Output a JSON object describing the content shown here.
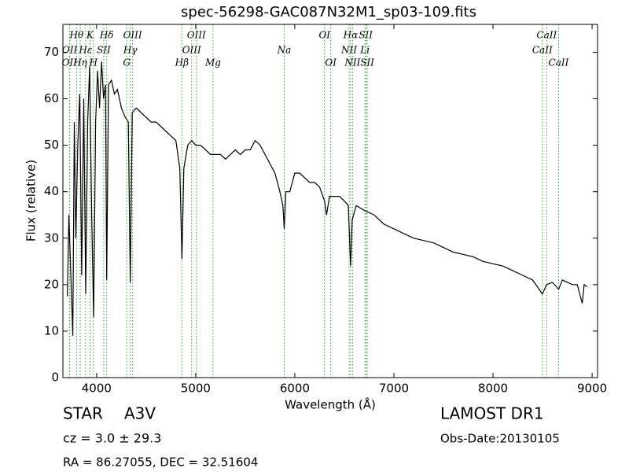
{
  "chart_data": {
    "type": "line",
    "title": "spec-56298-GAC087N32M1_sp03-109.fits",
    "xlabel": "Wavelength (Å)",
    "ylabel": "Flux (relative)",
    "xlim": [
      3660,
      9055
    ],
    "ylim": [
      0,
      76
    ],
    "xticks": [
      4000,
      5000,
      6000,
      7000,
      8000,
      9000
    ],
    "yticks": [
      0,
      10,
      20,
      30,
      40,
      50,
      60,
      70
    ],
    "x": [
      3705,
      3720,
      3740,
      3760,
      3775,
      3790,
      3810,
      3830,
      3850,
      3870,
      3890,
      3910,
      3930,
      3950,
      3970,
      3990,
      4010,
      4030,
      4050,
      4070,
      4090,
      4102,
      4120,
      4150,
      4180,
      4210,
      4250,
      4290,
      4320,
      4340,
      4360,
      4400,
      4450,
      4500,
      4550,
      4600,
      4650,
      4700,
      4750,
      4800,
      4840,
      4861,
      4880,
      4920,
      4960,
      5000,
      5050,
      5100,
      5150,
      5200,
      5250,
      5300,
      5350,
      5400,
      5450,
      5500,
      5550,
      5600,
      5650,
      5700,
      5750,
      5800,
      5850,
      5880,
      5893,
      5910,
      5950,
      6000,
      6050,
      6100,
      6150,
      6200,
      6250,
      6300,
      6320,
      6350,
      6400,
      6450,
      6500,
      6540,
      6563,
      6580,
      6620,
      6700,
      6800,
      6900,
      7000,
      7100,
      7200,
      7300,
      7400,
      7500,
      7600,
      7700,
      7800,
      7900,
      8000,
      8100,
      8200,
      8300,
      8400,
      8498,
      8542,
      8600,
      8662,
      8700,
      8800,
      8850,
      8900,
      8920,
      8950
    ],
    "series": [
      {
        "color": "#000000",
        "values": [
          17.5,
          35,
          22,
          9,
          55,
          30,
          50,
          61,
          22,
          60,
          18,
          55,
          67,
          35,
          13,
          55,
          66,
          58,
          68,
          60,
          63,
          21,
          63,
          64,
          61,
          62,
          58,
          56,
          55,
          20.5,
          57,
          58,
          57,
          56,
          55,
          55,
          54,
          53,
          52,
          51,
          45,
          25.5,
          45,
          50,
          51,
          50,
          50,
          49,
          48,
          48,
          48,
          47,
          48,
          49,
          48,
          49,
          49,
          51,
          50,
          48,
          46,
          44,
          40,
          37,
          32,
          40,
          40,
          44,
          44,
          43,
          42,
          42,
          41,
          38,
          35,
          39,
          39,
          39,
          38,
          37,
          24,
          34,
          37,
          36,
          35,
          33,
          32,
          31,
          30,
          29.5,
          29,
          28,
          27,
          26.5,
          26,
          25,
          24.5,
          24,
          23,
          22,
          21,
          18,
          20,
          20.5,
          19,
          21,
          20,
          20,
          16,
          20,
          19.5
        ]
      }
    ],
    "line_color": "#2ca02c",
    "annotations": [
      [
        {
          "label": "Hθ",
          "x": 3798
        },
        {
          "label": "K",
          "x": 3934
        },
        {
          "label": "Hδ",
          "x": 4102
        },
        {
          "label": "OIII",
          "x": 4363
        },
        {
          "label": "OIII",
          "x": 5007
        },
        {
          "label": "OI",
          "x": 6300
        },
        {
          "label": "Hα",
          "x": 6563
        },
        {
          "label": "SII",
          "x": 6716
        },
        {
          "label": "CaII",
          "x": 8542
        }
      ],
      [
        {
          "label": "OII",
          "x": 3729
        },
        {
          "label": "Hε",
          "x": 3889
        },
        {
          "label": "SII",
          "x": 4072
        },
        {
          "label": "Hγ",
          "x": 4340
        },
        {
          "label": "OIII",
          "x": 4959
        },
        {
          "label": "Na",
          "x": 5893
        },
        {
          "label": "NII",
          "x": 6548
        },
        {
          "label": "Li",
          "x": 6708
        },
        {
          "label": "CaII",
          "x": 8498
        }
      ],
      [
        {
          "label": "OII",
          "x": 3726
        },
        {
          "label": "Hη",
          "x": 3835
        },
        {
          "label": "H",
          "x": 3968
        },
        {
          "label": "G",
          "x": 4304
        },
        {
          "label": "Hβ",
          "x": 4861
        },
        {
          "label": "Mg",
          "x": 5175
        },
        {
          "label": "OI",
          "x": 6363
        },
        {
          "label": "NII",
          "x": 6583
        },
        {
          "label": "SII",
          "x": 6731
        },
        {
          "label": "CaII",
          "x": 8662
        }
      ]
    ],
    "object_class": "STAR",
    "subclass": "A3V",
    "redshift": "cz = 3.0 ± 29.3",
    "coordinates": "RA = 86.27055, DEC = 32.51604",
    "survey": "LAMOST DR1",
    "obs_date": "Obs-Date:20130105"
  }
}
